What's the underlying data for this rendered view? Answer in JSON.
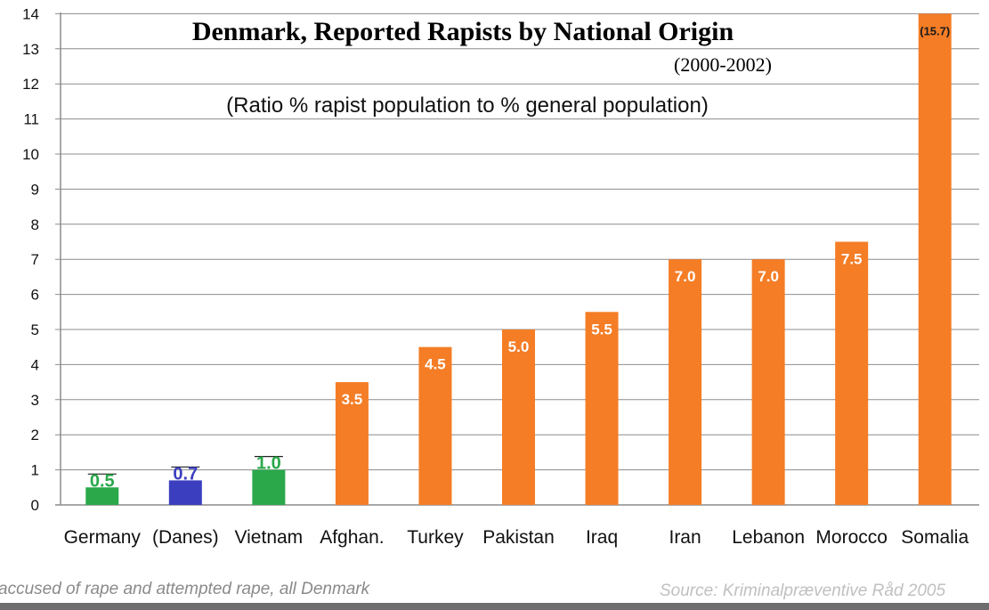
{
  "chart_data": {
    "type": "bar",
    "title": "Denmark, Reported Rapists by National Origin",
    "subtitle": "(2000-2002)",
    "annotation": "(Ratio % rapist population to % general population)",
    "categories": [
      "Germany",
      "(Danes)",
      "Vietnam",
      "Afghan.",
      "Turkey",
      "Pakistan",
      "Iraq",
      "Iran",
      "Lebanon",
      "Morocco",
      "Somalia"
    ],
    "values": [
      0.5,
      0.7,
      1.0,
      3.5,
      4.5,
      5.0,
      5.5,
      7.0,
      7.0,
      7.5,
      15.7
    ],
    "data_labels": [
      "0.5",
      "0.7",
      "1.0",
      "3.5",
      "4.5",
      "5.0",
      "5.5",
      "7.0",
      "7.0",
      "7.5",
      "(15.7)"
    ],
    "colors": [
      "#2aa84a",
      "#3b3fbf",
      "#2aa84a",
      "#f47d26",
      "#f47d26",
      "#f47d26",
      "#f47d26",
      "#f47d26",
      "#f47d26",
      "#f47d26",
      "#f47d26"
    ],
    "yticks": [
      "0",
      "1",
      "2",
      "3",
      "4",
      "5",
      "6",
      "7",
      "8",
      "9",
      "10",
      "11",
      "12",
      "13",
      "14"
    ],
    "ylim": [
      0,
      14
    ],
    "xlabel": "",
    "ylabel": "",
    "grid": true,
    "footnote": "accused of rape and attempted rape, all Denmark",
    "source": "Source: Kriminalpræventive Råd 2005"
  }
}
